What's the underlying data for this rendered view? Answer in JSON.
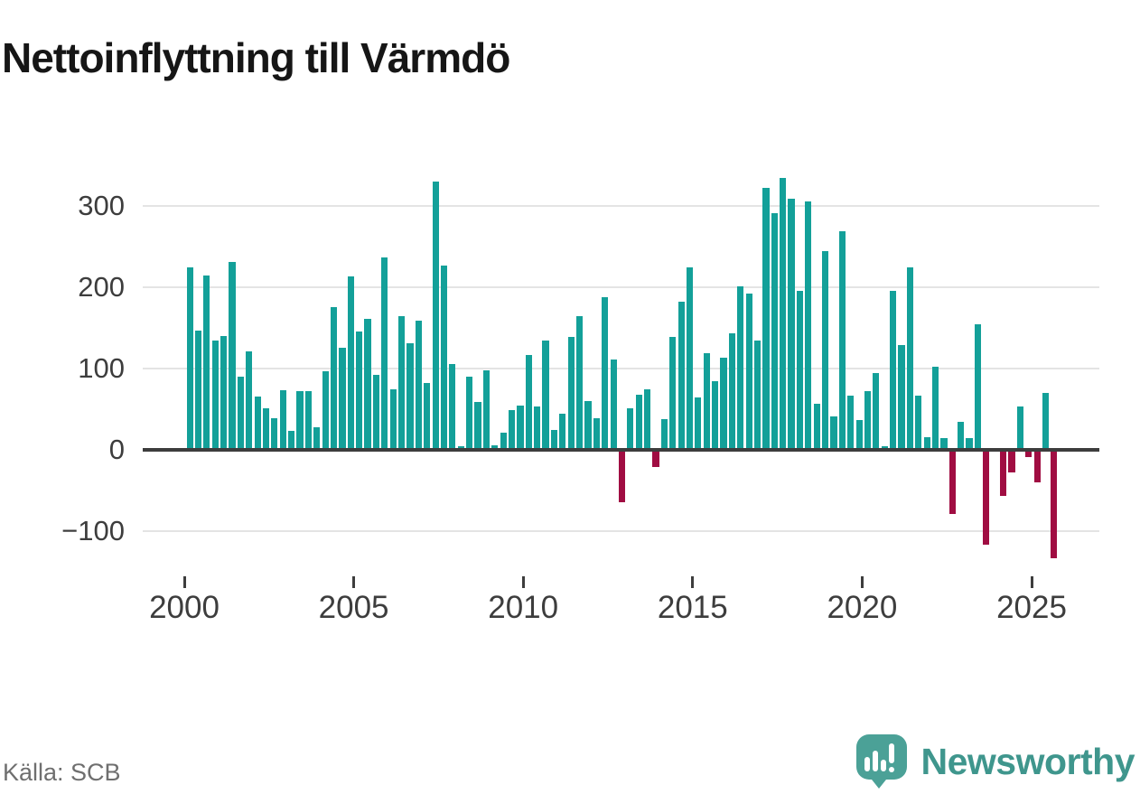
{
  "page": {
    "background": "#ffffff"
  },
  "header": {
    "title": "Nettoinflyttning till Värmdö"
  },
  "footer": {
    "source": "Källa: SCB",
    "brand": {
      "name": "Newsworthy",
      "icon": "newsworthy-speech-bubble-chart-icon"
    }
  },
  "colors": {
    "positive_bar": "#13a099",
    "negative_bar": "#a00d42",
    "gridline": "#e4e4e4",
    "zero_axis": "#3d3d3d",
    "tick_label": "#3d3d3d",
    "title": "#161616",
    "source_text": "#6f6f6f",
    "brand_text": "#3f968d",
    "brand_icon": "#4ba197"
  },
  "chart_data": {
    "type": "bar",
    "title": "Nettoinflyttning till Värmdö",
    "xlabel": "",
    "ylabel": "",
    "legend": "none",
    "grid": "horizontal",
    "frequency": "quarterly",
    "x_range": [
      "2000Q1",
      "2025Q3"
    ],
    "ylim": [
      -145,
      350
    ],
    "y_ticks": [
      300,
      200,
      100,
      0,
      -100
    ],
    "y_tick_labels": [
      "300",
      "200",
      "100",
      "0",
      "−100"
    ],
    "x_tick_years": [
      2000,
      2005,
      2010,
      2015,
      2020,
      2025
    ],
    "x_tick_labels": [
      "2000",
      "2005",
      "2010",
      "2015",
      "2020",
      "2025"
    ],
    "categories": [
      "2000Q1",
      "2000Q2",
      "2000Q3",
      "2000Q4",
      "2001Q1",
      "2001Q2",
      "2001Q3",
      "2001Q4",
      "2002Q1",
      "2002Q2",
      "2002Q3",
      "2002Q4",
      "2003Q1",
      "2003Q2",
      "2003Q3",
      "2003Q4",
      "2004Q1",
      "2004Q2",
      "2004Q3",
      "2004Q4",
      "2005Q1",
      "2005Q2",
      "2005Q3",
      "2005Q4",
      "2006Q1",
      "2006Q2",
      "2006Q3",
      "2006Q4",
      "2007Q1",
      "2007Q2",
      "2007Q3",
      "2007Q4",
      "2008Q1",
      "2008Q2",
      "2008Q3",
      "2008Q4",
      "2009Q1",
      "2009Q2",
      "2009Q3",
      "2009Q4",
      "2010Q1",
      "2010Q2",
      "2010Q3",
      "2010Q4",
      "2011Q1",
      "2011Q2",
      "2011Q3",
      "2011Q4",
      "2012Q1",
      "2012Q2",
      "2012Q3",
      "2012Q4",
      "2013Q1",
      "2013Q2",
      "2013Q3",
      "2013Q4",
      "2014Q1",
      "2014Q2",
      "2014Q3",
      "2014Q4",
      "2015Q1",
      "2015Q2",
      "2015Q3",
      "2015Q4",
      "2016Q1",
      "2016Q2",
      "2016Q3",
      "2016Q4",
      "2017Q1",
      "2017Q2",
      "2017Q3",
      "2017Q4",
      "2018Q1",
      "2018Q2",
      "2018Q3",
      "2018Q4",
      "2019Q1",
      "2019Q2",
      "2019Q3",
      "2019Q4",
      "2020Q1",
      "2020Q2",
      "2020Q3",
      "2020Q4",
      "2021Q1",
      "2021Q2",
      "2021Q3",
      "2021Q4",
      "2022Q1",
      "2022Q2",
      "2022Q3",
      "2022Q4",
      "2023Q1",
      "2023Q2",
      "2023Q3",
      "2023Q4",
      "2024Q1",
      "2024Q2",
      "2024Q3",
      "2024Q4",
      "2025Q1",
      "2025Q2",
      "2025Q3"
    ],
    "values": [
      225,
      147,
      215,
      135,
      140,
      231,
      90,
      121,
      66,
      51,
      39,
      73,
      23,
      72,
      72,
      28,
      97,
      176,
      126,
      213,
      146,
      161,
      92,
      237,
      75,
      164,
      131,
      159,
      82,
      330,
      227,
      106,
      4,
      90,
      59,
      98,
      6,
      21,
      49,
      54,
      117,
      53,
      134,
      24,
      44,
      139,
      164,
      60,
      39,
      188,
      111,
      -64,
      51,
      68,
      74,
      -21,
      38,
      139,
      182,
      225,
      65,
      119,
      84,
      113,
      143,
      201,
      192,
      135,
      322,
      291,
      334,
      309,
      196,
      306,
      57,
      244,
      41,
      269,
      67,
      37,
      72,
      94,
      4,
      196,
      129,
      225,
      67,
      16,
      102,
      15,
      -79,
      34,
      15,
      155,
      -117,
      0,
      -57,
      -28,
      53,
      -9,
      -40,
      70,
      -133
    ]
  }
}
